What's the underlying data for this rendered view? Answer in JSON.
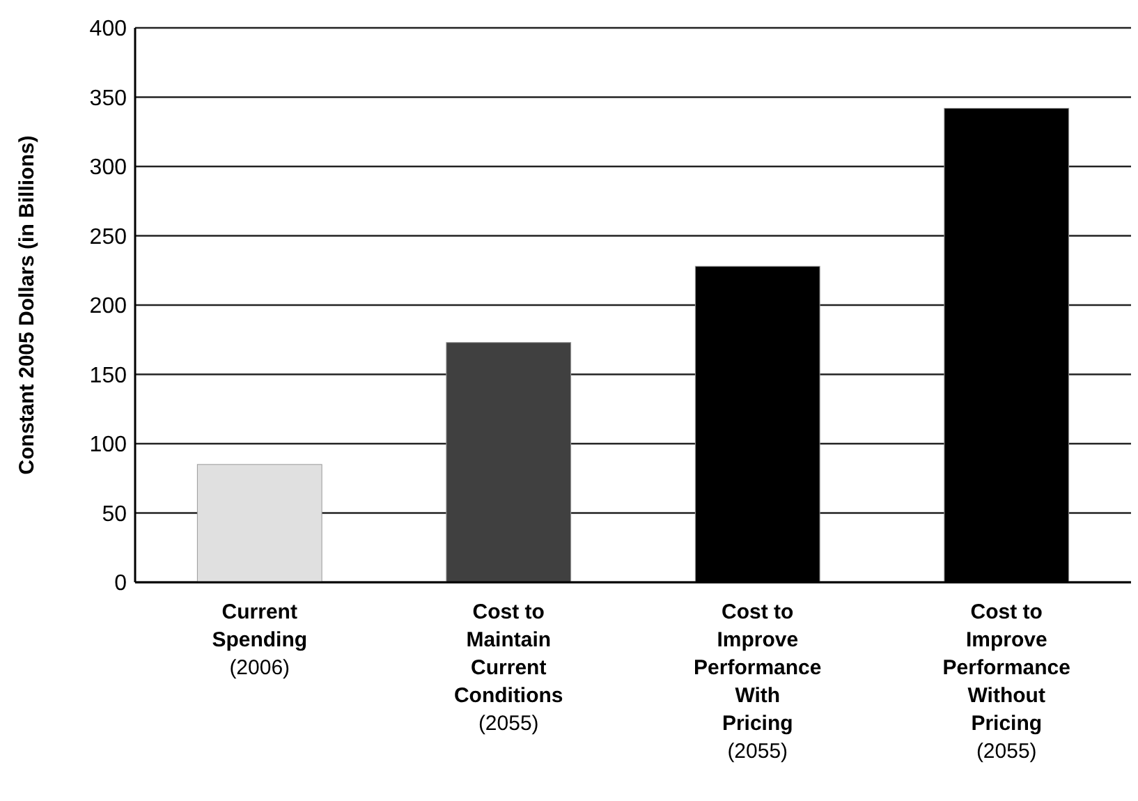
{
  "chart_data": {
    "type": "bar",
    "ylabel": "Constant 2005 Dollars (in Billions)",
    "categories": [
      "Current\nSpending\n(2006)",
      "Cost to\nMaintain\nCurrent\nConditions\n(2055)",
      "Cost to\nImprove\nPerformance\nWith\nPricing\n(2055)",
      "Cost to\nImprove\nPerformance\nWithout\nPricing\n(2055)"
    ],
    "values": [
      85,
      173,
      228,
      342
    ],
    "colors": [
      "#e0e0e0",
      "#404040",
      "#000000",
      "#000000"
    ],
    "ylim": [
      0,
      400
    ],
    "yticks": [
      0,
      50,
      100,
      150,
      200,
      250,
      300,
      350,
      400
    ],
    "grid": "y"
  }
}
